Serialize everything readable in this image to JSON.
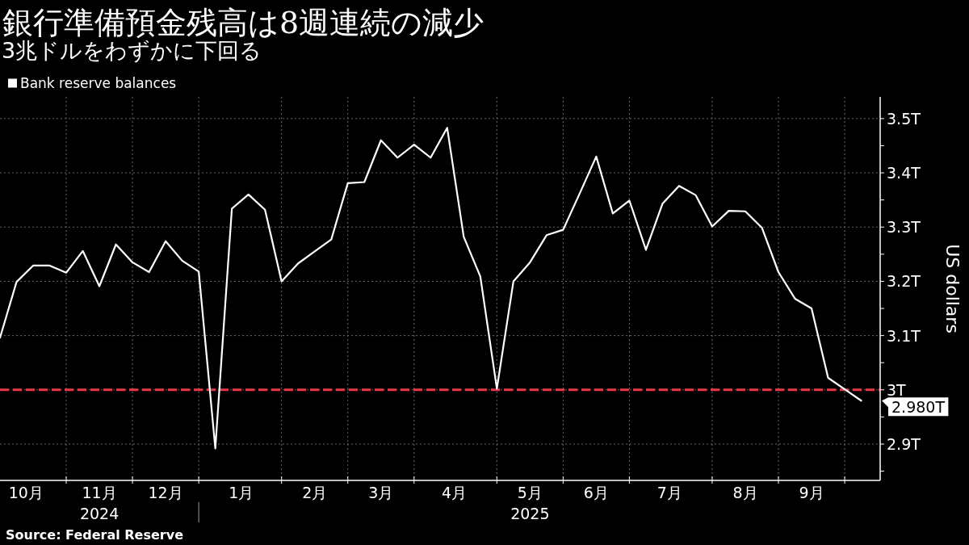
{
  "chart_data": {
    "type": "line",
    "title": "銀行準備預金残高は8週連続の減少",
    "subtitle": "3兆ドルをわずかに下回る",
    "ylabel": "US dollars",
    "x": [
      "2024-10-02",
      "2024-10-09",
      "2024-10-16",
      "2024-10-23",
      "2024-10-30",
      "2024-11-06",
      "2024-11-13",
      "2024-11-20",
      "2024-11-27",
      "2024-12-04",
      "2024-12-11",
      "2024-12-18",
      "2024-12-25",
      "2025-01-01",
      "2025-01-08",
      "2025-01-15",
      "2025-01-22",
      "2025-01-29",
      "2025-02-05",
      "2025-02-12",
      "2025-02-19",
      "2025-02-26",
      "2025-03-05",
      "2025-03-12",
      "2025-03-19",
      "2025-03-26",
      "2025-04-02",
      "2025-04-09",
      "2025-04-16",
      "2025-04-23",
      "2025-04-30",
      "2025-05-07",
      "2025-05-14",
      "2025-05-21",
      "2025-05-28",
      "2025-06-04",
      "2025-06-11",
      "2025-06-18",
      "2025-06-25",
      "2025-07-02",
      "2025-07-09",
      "2025-07-16",
      "2025-07-23",
      "2025-07-30",
      "2025-08-06",
      "2025-08-13",
      "2025-08-20",
      "2025-08-27",
      "2025-09-03",
      "2025-09-10",
      "2025-09-17",
      "2025-09-24",
      "2025-10-01"
    ],
    "series": [
      {
        "name": "Bank reserve balances",
        "color": "#ffffff",
        "values": [
          3.096,
          3.199,
          3.229,
          3.229,
          3.216,
          3.256,
          3.191,
          3.268,
          3.235,
          3.217,
          3.274,
          3.238,
          3.218,
          2.892,
          3.334,
          3.36,
          3.332,
          3.2,
          3.233,
          3.255,
          3.277,
          3.381,
          3.383,
          3.46,
          3.428,
          3.452,
          3.428,
          3.483,
          3.282,
          3.209,
          3.002,
          3.2,
          3.235,
          3.285,
          3.295,
          3.362,
          3.43,
          3.325,
          3.349,
          3.258,
          3.343,
          3.376,
          3.359,
          3.301,
          3.33,
          3.329,
          3.299,
          3.217,
          3.168,
          3.15,
          3.022,
          3.001,
          2.98
        ]
      }
    ],
    "xlim": [
      "2024-10-02",
      "2025-10-09"
    ],
    "xticks": [
      {
        "value": "2024-10-13",
        "label": "10月"
      },
      {
        "value": "2024-10-30",
        "label": null
      },
      {
        "value": "2024-11-13",
        "label": "11月\n2024"
      },
      {
        "value": "2024-11-27",
        "label": null
      },
      {
        "value": "2024-12-11",
        "label": "12月"
      },
      {
        "value": "2024-12-25",
        "label": null
      },
      {
        "value": "2025-01-12",
        "label": "1月"
      },
      {
        "value": "2025-01-29",
        "label": null
      },
      {
        "value": "2025-02-12",
        "label": "2月"
      },
      {
        "value": "2025-02-26",
        "label": null
      },
      {
        "value": "2025-03-12",
        "label": "3月"
      },
      {
        "value": "2025-03-26",
        "label": null
      },
      {
        "value": "2025-04-12",
        "label": "4月"
      },
      {
        "value": "2025-04-30",
        "label": null
      },
      {
        "value": "2025-05-14",
        "label": "5月\n2025"
      },
      {
        "value": "2025-05-28",
        "label": null
      },
      {
        "value": "2025-06-11",
        "label": "6月"
      },
      {
        "value": "2025-06-25",
        "label": null
      },
      {
        "value": "2025-07-12",
        "label": "7月"
      },
      {
        "value": "2025-07-30",
        "label": null
      },
      {
        "value": "2025-08-13",
        "label": "8月"
      },
      {
        "value": "2025-08-27",
        "label": null
      },
      {
        "value": "2025-09-10",
        "label": "9月"
      },
      {
        "value": "2025-09-24",
        "label": null
      }
    ],
    "ylim": [
      2.833,
      3.54
    ],
    "yticks": [
      {
        "value": 2.85,
        "label": null
      },
      {
        "value": 2.9,
        "label": "2.9T"
      },
      {
        "value": 2.95,
        "label": null
      },
      {
        "value": 3,
        "label": "3T"
      },
      {
        "value": 3.05,
        "label": null
      },
      {
        "value": 3.1,
        "label": "3.1T"
      },
      {
        "value": 3.15,
        "label": null
      },
      {
        "value": 3.2,
        "label": "3.2T"
      },
      {
        "value": 3.25,
        "label": null
      },
      {
        "value": 3.3,
        "label": "3.3T"
      },
      {
        "value": 3.35,
        "label": null
      },
      {
        "value": 3.4,
        "label": "3.4T"
      },
      {
        "value": 3.45,
        "label": null
      },
      {
        "value": 3.5,
        "label": "3.5T"
      }
    ],
    "grid": true,
    "legend": "top left",
    "ref_lines": [
      {
        "axis": "y",
        "value": 3,
        "color": "#e8384f",
        "line_style": "dashed"
      }
    ],
    "annotations": [
      {
        "text": "2.980T",
        "x": "2025-10-01",
        "y": 2.98
      },
      "Source: Federal Reserve"
    ]
  }
}
